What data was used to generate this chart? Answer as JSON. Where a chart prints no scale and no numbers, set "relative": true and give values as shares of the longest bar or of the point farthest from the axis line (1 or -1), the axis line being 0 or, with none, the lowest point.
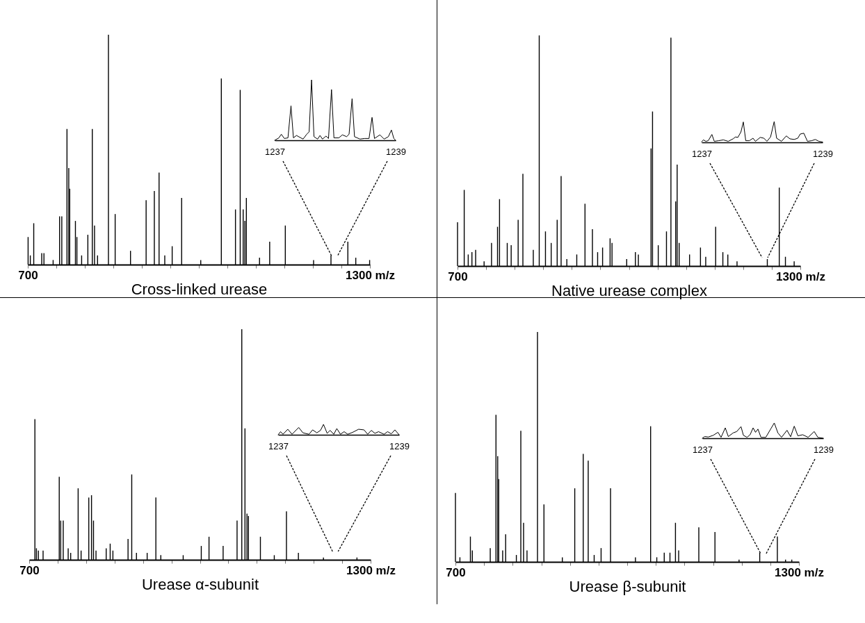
{
  "chart_data": [
    {
      "type": "bar",
      "relative": true,
      "xlabel": "Cross-linked urease",
      "color": "#000000",
      "xlim": [
        700,
        1300
      ],
      "xticks": [
        700,
        {
          "value": 750,
          "label": null
        },
        {
          "value": 800,
          "label": null
        },
        {
          "value": 850,
          "label": null
        },
        {
          "value": 900,
          "label": null
        },
        {
          "value": 950,
          "label": null
        },
        {
          "value": 1000,
          "label": null
        },
        {
          "value": 1050,
          "label": null
        },
        {
          "value": 1100,
          "label": null
        },
        {
          "value": 1150,
          "label": null
        },
        {
          "value": 1200,
          "label": null
        },
        {
          "value": 1250,
          "label": null
        },
        {
          "value": 1300,
          "label": "1300 m/z"
        }
      ],
      "x": [
        700.5,
        704.4,
        710.4,
        724.4,
        728.3,
        744.4,
        755.7,
        759.6,
        768.7,
        771.8,
        773.5,
        783.5,
        786.1,
        794.4,
        805.3,
        813.1,
        817.0,
        822.3,
        841.4,
        853.2,
        880.1,
        907.5,
        921.9,
        930.2,
        940.2,
        953.2,
        969.8,
        1003.3,
        1039.4,
        1064.2,
        1072.5,
        1077.7,
        1080.7,
        1083.3,
        1106.4,
        1124.2,
        1151.6,
        1201.2,
        1231.7,
        1261.3,
        1275.2,
        1299.5
      ],
      "values": [
        0.12,
        0.04,
        0.18,
        0.05,
        0.05,
        0.02,
        0.21,
        0.21,
        0.59,
        0.42,
        0.33,
        0.19,
        0.12,
        0.04,
        0.13,
        0.59,
        0.17,
        0.04,
        1.0,
        0.22,
        0.06,
        0.28,
        0.32,
        0.4,
        0.04,
        0.08,
        0.29,
        0.02,
        0.81,
        0.24,
        0.76,
        0.24,
        0.19,
        0.29,
        0.03,
        0.1,
        0.17,
        0.02,
        0.04,
        0.1,
        0.03,
        0.02
      ]
    },
    {
      "type": "line",
      "relative": true,
      "color": "#000000",
      "xlim": [
        1237,
        1239
      ],
      "xticks": [
        1237,
        1239
      ],
      "x": [
        1237.0,
        1237.07,
        1237.11,
        1237.16,
        1237.22,
        1237.27,
        1237.31,
        1237.36,
        1237.47,
        1237.53,
        1237.57,
        1237.61,
        1237.65,
        1237.71,
        1237.75,
        1237.79,
        1237.85,
        1237.89,
        1237.94,
        1237.98,
        1238.06,
        1238.12,
        1238.19,
        1238.23,
        1238.28,
        1238.32,
        1238.41,
        1238.49,
        1238.56,
        1238.61,
        1238.65,
        1238.74,
        1238.81,
        1238.88,
        1238.93,
        1238.97,
        1239.0
      ],
      "values": [
        0,
        0.04,
        0.1,
        0.03,
        0.04,
        0.57,
        0.04,
        0.08,
        0.02,
        0.1,
        0.14,
        1.0,
        0.06,
        0.02,
        0.08,
        0.02,
        0.07,
        0.03,
        0.84,
        0.04,
        0.04,
        0.09,
        0.06,
        0.1,
        0.69,
        0.06,
        0.02,
        0.03,
        0.03,
        0.38,
        0.03,
        0.09,
        0.02,
        0.06,
        0.17,
        0.03,
        0
      ]
    },
    {
      "type": "bar",
      "relative": true,
      "xlabel": "Native urease complex",
      "color": "#000000",
      "xlim": [
        700,
        1300
      ],
      "xticks": [
        700,
        {
          "value": 750,
          "label": null
        },
        {
          "value": 800,
          "label": null
        },
        {
          "value": 850,
          "label": null
        },
        {
          "value": 900,
          "label": null
        },
        {
          "value": 950,
          "label": null
        },
        {
          "value": 1000,
          "label": null
        },
        {
          "value": 1050,
          "label": null
        },
        {
          "value": 1100,
          "label": null
        },
        {
          "value": 1150,
          "label": null
        },
        {
          "value": 1200,
          "label": null
        },
        {
          "value": 1250,
          "label": null
        },
        {
          "value": 1300,
          "label": "1300 m/z"
        }
      ],
      "x": [
        700.0,
        711.7,
        718.7,
        725.2,
        731.7,
        746.5,
        759.5,
        770.0,
        773.5,
        787.0,
        793.9,
        806.1,
        814.4,
        832.6,
        843.0,
        853.9,
        863.9,
        874.4,
        881.3,
        891.3,
        908.7,
        923.1,
        936.1,
        945.2,
        953.9,
        967.0,
        970.4,
        996.1,
        1011.3,
        1016.5,
        1038.7,
        1041.3,
        1051.3,
        1065.7,
        1073.5,
        1081.8,
        1084.4,
        1087.9,
        1106.1,
        1125.2,
        1134.4,
        1151.8,
        1164.4,
        1173.1,
        1189.2,
        1242.2,
        1263.1,
        1273.9,
        1289.2
      ],
      "values": [
        0.19,
        0.33,
        0.05,
        0.06,
        0.07,
        0.02,
        0.1,
        0.17,
        0.29,
        0.1,
        0.09,
        0.2,
        0.4,
        0.07,
        1.0,
        0.15,
        0.1,
        0.2,
        0.39,
        0.03,
        0.05,
        0.27,
        0.16,
        0.06,
        0.08,
        0.12,
        0.1,
        0.03,
        0.06,
        0.05,
        0.51,
        0.67,
        0.09,
        0.15,
        0.99,
        0.28,
        0.44,
        0.1,
        0.05,
        0.08,
        0.04,
        0.17,
        0.06,
        0.05,
        0.02,
        0.03,
        0.34,
        0.04,
        0.02
      ]
    },
    {
      "type": "line",
      "relative": true,
      "color": "#000000",
      "xlim": [
        1237,
        1239
      ],
      "xticks": [
        1237,
        1239
      ],
      "x": [
        1237.0,
        1237.03,
        1237.07,
        1237.11,
        1237.17,
        1237.21,
        1237.28,
        1237.36,
        1237.44,
        1237.52,
        1237.56,
        1237.6,
        1237.65,
        1237.69,
        1237.73,
        1237.79,
        1237.85,
        1237.89,
        1237.97,
        1238.03,
        1238.08,
        1238.14,
        1238.2,
        1238.24,
        1238.32,
        1238.4,
        1238.46,
        1238.53,
        1238.59,
        1238.63,
        1238.69,
        1238.75,
        1238.82,
        1238.88,
        1238.94,
        1239.0
      ],
      "values": [
        0.02,
        0.12,
        0.05,
        0.08,
        0.38,
        0.05,
        0.08,
        0.12,
        0.05,
        0.17,
        0.26,
        0.24,
        0.5,
        0.98,
        0.08,
        0.08,
        0.2,
        0.05,
        0.24,
        0.2,
        0.05,
        0.26,
        1.0,
        0.2,
        0.05,
        0.31,
        0.17,
        0.14,
        0.2,
        0.4,
        0.44,
        0.05,
        0.08,
        0.14,
        0.05,
        0.02
      ]
    },
    {
      "type": "bar",
      "relative": true,
      "xlabel": "Urease α-subunit",
      "color": "#000000",
      "xlim": [
        700,
        1300
      ],
      "xticks": [
        700,
        {
          "value": 750,
          "label": null
        },
        {
          "value": 800,
          "label": null
        },
        {
          "value": 850,
          "label": null
        },
        {
          "value": 900,
          "label": null
        },
        {
          "value": 950,
          "label": null
        },
        {
          "value": 1000,
          "label": null
        },
        {
          "value": 1050,
          "label": null
        },
        {
          "value": 1100,
          "label": null
        },
        {
          "value": 1150,
          "label": null
        },
        {
          "value": 1200,
          "label": null
        },
        {
          "value": 1250,
          "label": null
        },
        {
          "value": 1300,
          "label": "1300 m/z"
        }
      ],
      "x": [
        710.0,
        712.7,
        716.1,
        724.4,
        752.8,
        755.4,
        759.8,
        768.5,
        772.9,
        786.0,
        791.2,
        804.7,
        809.5,
        813.0,
        817.4,
        835.3,
        842.3,
        847.1,
        873.7,
        880.2,
        888.5,
        907.3,
        922.6,
        931.3,
        970.6,
        1002.4,
        1016.0,
        1040.8,
        1065.3,
        1073.6,
        1079.2,
        1082.7,
        1085.3,
        1106.3,
        1130.7,
        1152.1,
        1173.1,
        1217.1,
        1276.0
      ],
      "values": [
        0.61,
        0.05,
        0.04,
        0.04,
        0.36,
        0.17,
        0.17,
        0.05,
        0.03,
        0.31,
        0.04,
        0.27,
        0.28,
        0.17,
        0.04,
        0.05,
        0.07,
        0.04,
        0.09,
        0.37,
        0.03,
        0.03,
        0.27,
        0.02,
        0.02,
        0.06,
        0.1,
        0.06,
        0.17,
        1.0,
        0.57,
        0.2,
        0.19,
        0.1,
        0.02,
        0.21,
        0.03,
        0.01,
        0.01
      ]
    },
    {
      "type": "line",
      "relative": true,
      "color": "#000000",
      "xlim": [
        1237,
        1239
      ],
      "xticks": [
        1237,
        1239
      ],
      "x": [
        1237.0,
        1237.04,
        1237.08,
        1237.16,
        1237.23,
        1237.34,
        1237.41,
        1237.51,
        1237.57,
        1237.64,
        1237.7,
        1237.75,
        1237.81,
        1237.86,
        1237.92,
        1237.97,
        1238.03,
        1238.09,
        1238.15,
        1238.23,
        1238.33,
        1238.42,
        1238.48,
        1238.54,
        1238.6,
        1238.66,
        1238.75,
        1238.81,
        1238.87,
        1238.93,
        1239.0
      ],
      "values": [
        0,
        0.3,
        0.05,
        0.53,
        0.05,
        0.7,
        0.19,
        0.05,
        0.47,
        0.19,
        0.42,
        1.0,
        0.14,
        0.42,
        0.05,
        0.6,
        0.05,
        0.3,
        0.05,
        0.23,
        0.53,
        0.47,
        0.05,
        0.42,
        0.14,
        0.3,
        0.05,
        0.3,
        0.09,
        0.47,
        0
      ]
    },
    {
      "type": "bar",
      "relative": true,
      "xlabel": "Urease β-subunit",
      "color": "#000000",
      "xlim": [
        700,
        1300
      ],
      "xticks": [
        700,
        {
          "value": 750,
          "label": null
        },
        {
          "value": 800,
          "label": null
        },
        {
          "value": 850,
          "label": null
        },
        {
          "value": 900,
          "label": null
        },
        {
          "value": 950,
          "label": null
        },
        {
          "value": 1000,
          "label": null
        },
        {
          "value": 1050,
          "label": null
        },
        {
          "value": 1100,
          "label": null
        },
        {
          "value": 1150,
          "label": null
        },
        {
          "value": 1200,
          "label": null
        },
        {
          "value": 1250,
          "label": null
        },
        {
          "value": 1300,
          "label": "1300 m/z"
        }
      ],
      "x": [
        700.0,
        707.8,
        726.1,
        729.5,
        760.8,
        770.8,
        773.8,
        775.6,
        782.5,
        787.7,
        806.4,
        814.2,
        819.0,
        825.0,
        843.3,
        854.6,
        886.7,
        908.4,
        923.2,
        931.9,
        942.3,
        954.4,
        970.9,
        1014.4,
        1040.9,
        1051.7,
        1064.7,
        1074.7,
        1084.3,
        1089.9,
        1125.1,
        1153.3,
        1195.4,
        1231.5,
        1262.3,
        1276.6,
        1287.5
      ],
      "values": [
        0.3,
        0.02,
        0.11,
        0.05,
        0.06,
        0.64,
        0.46,
        0.36,
        0.05,
        0.12,
        0.03,
        0.57,
        0.17,
        0.05,
        1.0,
        0.25,
        0.02,
        0.32,
        0.47,
        0.44,
        0.03,
        0.06,
        0.32,
        0.02,
        0.59,
        0.02,
        0.04,
        0.04,
        0.17,
        0.05,
        0.15,
        0.13,
        0.01,
        0.04,
        0.11,
        0.01,
        0.01
      ]
    },
    {
      "type": "line",
      "relative": true,
      "color": "#000000",
      "xlim": [
        1237,
        1239
      ],
      "xticks": [
        1237,
        1239
      ],
      "x": [
        1237.0,
        1237.04,
        1237.1,
        1237.18,
        1237.26,
        1237.31,
        1237.38,
        1237.43,
        1237.51,
        1237.57,
        1237.64,
        1237.68,
        1237.74,
        1237.79,
        1237.84,
        1237.88,
        1237.92,
        1237.97,
        1238.05,
        1238.13,
        1238.19,
        1238.25,
        1238.31,
        1238.4,
        1238.46,
        1238.52,
        1238.58,
        1238.66,
        1238.75,
        1238.85,
        1238.91,
        1239.0
      ],
      "values": [
        0,
        0.11,
        0.08,
        0.19,
        0.39,
        0.06,
        0.68,
        0.11,
        0.35,
        0.44,
        0.76,
        0.19,
        0.06,
        0.23,
        0.68,
        0.39,
        0.6,
        0.06,
        0.06,
        0.6,
        1.0,
        0.35,
        0.06,
        0.52,
        0.1,
        0.79,
        0.16,
        0.23,
        0.06,
        0.44,
        0.06,
        0
      ]
    }
  ]
}
